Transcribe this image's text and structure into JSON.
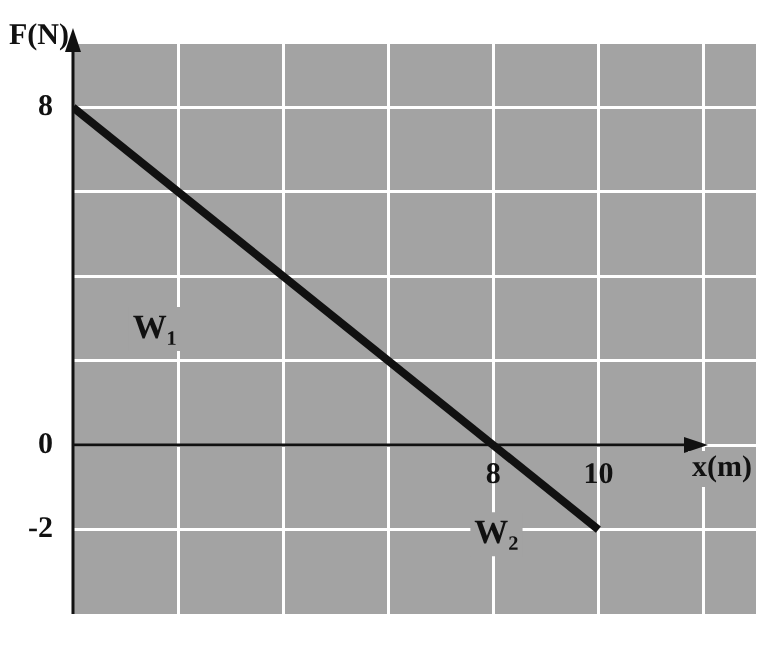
{
  "chart_data": {
    "type": "line",
    "xlabel": "x(m)",
    "ylabel": "F(N)",
    "x": [
      0,
      10
    ],
    "series": [
      {
        "color": "#111111",
        "values": [
          8,
          -2
        ]
      }
    ],
    "xlim": [
      0,
      13
    ],
    "ylim": [
      -4,
      9.5
    ],
    "xticks": [
      {
        "value": 0,
        "label": null
      },
      {
        "value": 2,
        "label": null
      },
      {
        "value": 4,
        "label": null
      },
      {
        "value": 6,
        "label": null
      },
      8,
      10,
      {
        "value": 12,
        "label": null
      }
    ],
    "yticks": [
      -2,
      0,
      {
        "value": 2,
        "label": null
      },
      {
        "value": 4,
        "label": null
      },
      {
        "value": 6,
        "label": null
      },
      8
    ],
    "grid": true,
    "marker": "none",
    "line_style": "solid",
    "legend": false,
    "annotations": [
      "W₁",
      "W₂"
    ]
  }
}
